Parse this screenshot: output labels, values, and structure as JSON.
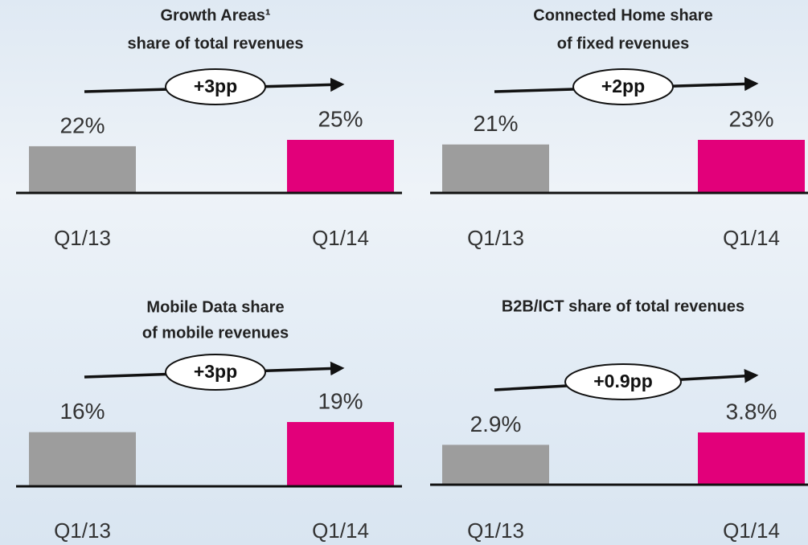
{
  "chart_data": [
    {
      "type": "bar",
      "title": [
        "Growth Areas¹",
        "share of total revenues"
      ],
      "categories": [
        "Q1/13",
        "Q1/14"
      ],
      "values": [
        22,
        25
      ],
      "value_labels": [
        "22%",
        "25%"
      ],
      "colors": [
        "#9d9d9d",
        "#e2007a"
      ],
      "annotation": "+3pp"
    },
    {
      "type": "bar",
      "title": [
        "Connected Home share",
        "of fixed revenues"
      ],
      "categories": [
        "Q1/13",
        "Q1/14"
      ],
      "values": [
        21,
        23
      ],
      "value_labels": [
        "21%",
        "23%"
      ],
      "colors": [
        "#9d9d9d",
        "#e2007a"
      ],
      "annotation": "+2pp"
    },
    {
      "type": "bar",
      "title": [
        "Mobile Data share",
        "of mobile revenues"
      ],
      "categories": [
        "Q1/13",
        "Q1/14"
      ],
      "values": [
        16,
        19
      ],
      "value_labels": [
        "16%",
        "19%"
      ],
      "colors": [
        "#9d9d9d",
        "#e2007a"
      ],
      "annotation": "+3pp"
    },
    {
      "type": "bar",
      "title": [
        "B2B/ICT share of total revenues"
      ],
      "categories": [
        "Q1/13",
        "Q1/14"
      ],
      "values": [
        2.9,
        3.8
      ],
      "value_labels": [
        "2.9%",
        "3.8%"
      ],
      "colors": [
        "#9d9d9d",
        "#e2007a"
      ],
      "annotation": "+0.9pp"
    }
  ]
}
